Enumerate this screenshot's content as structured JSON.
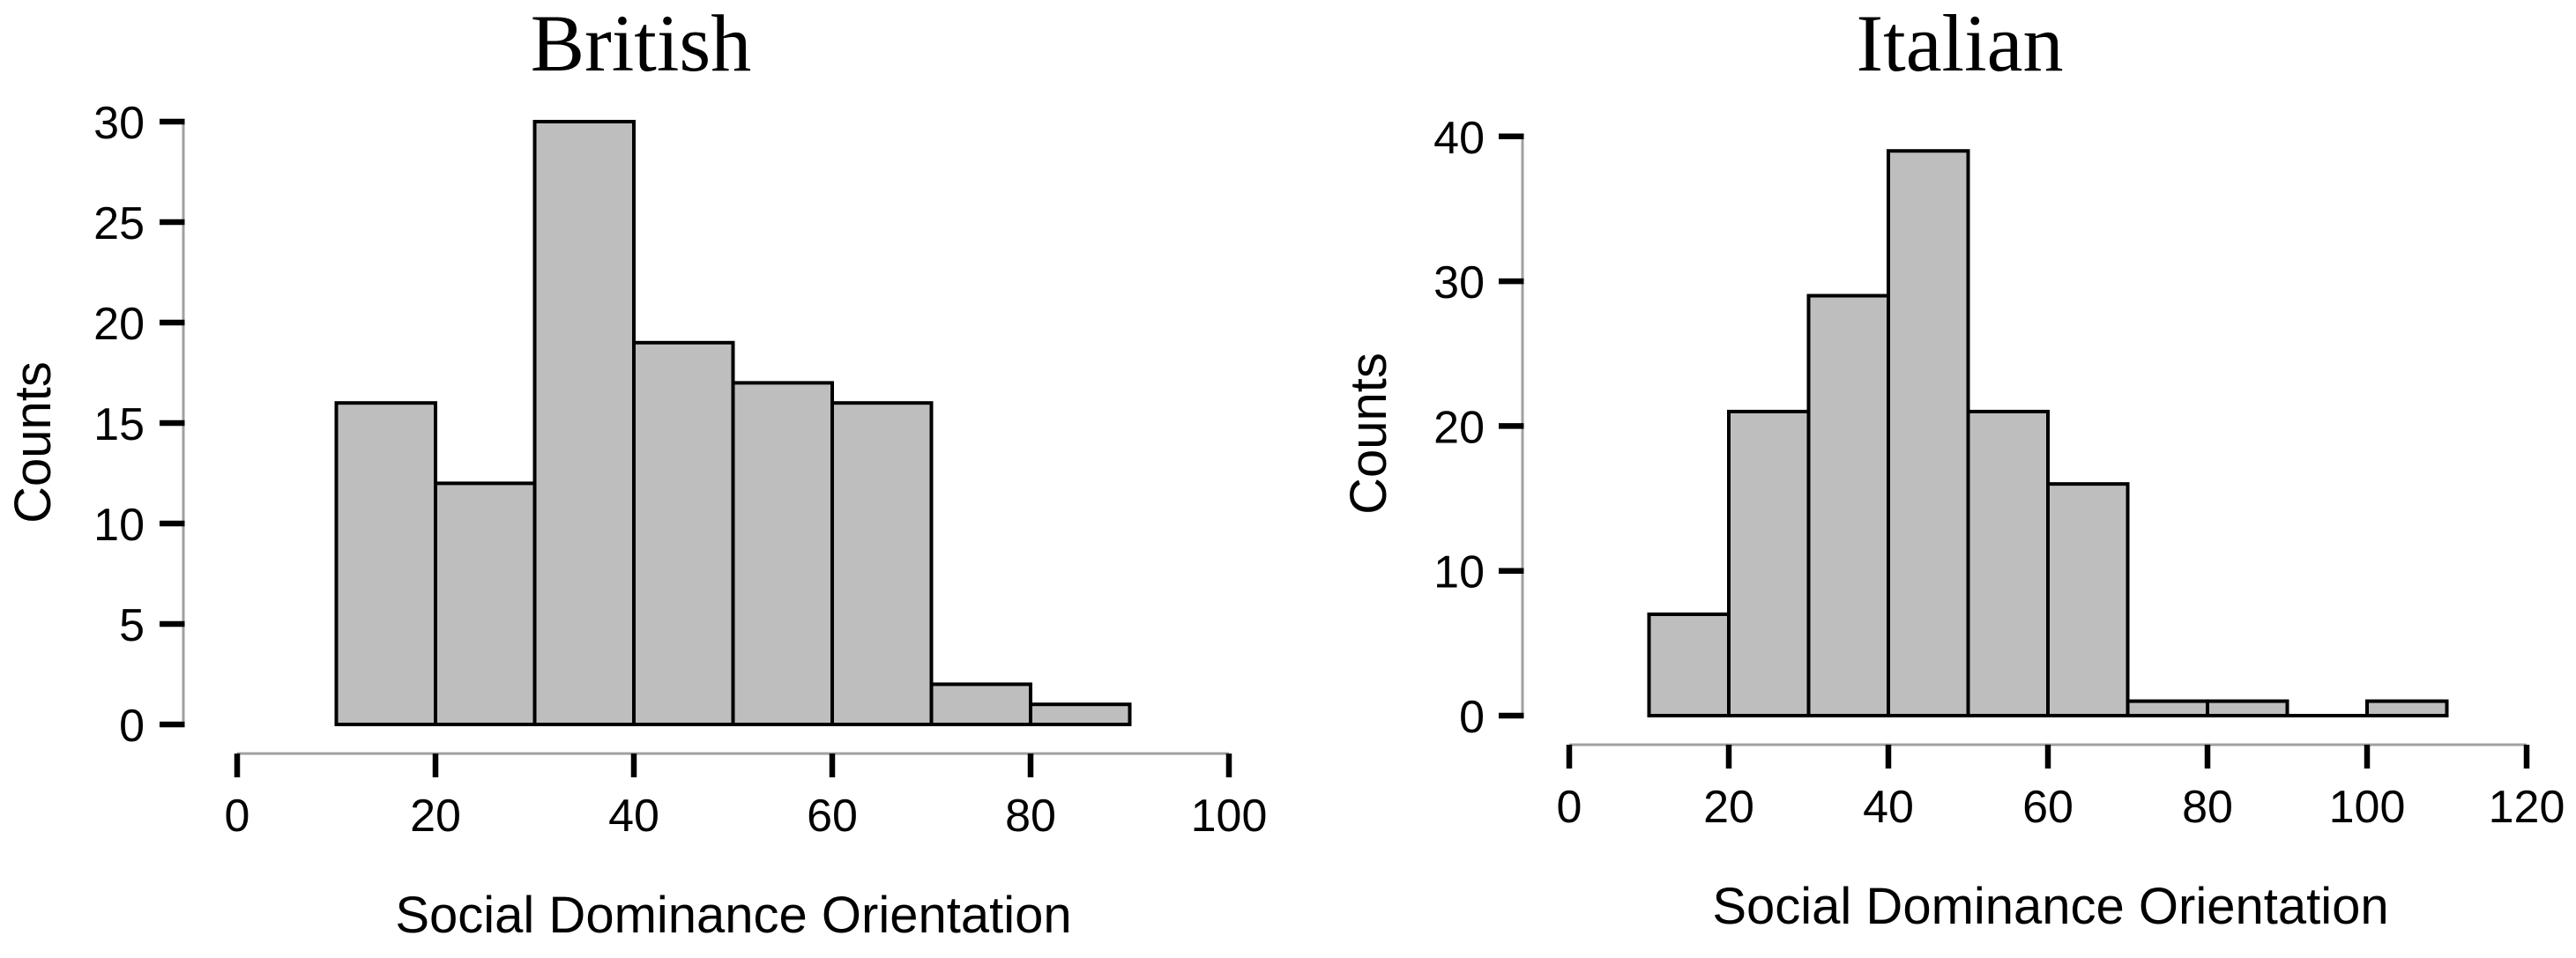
{
  "style": {
    "background": "#ffffff",
    "bar_fill": "#bebebe",
    "bar_stroke": "#000000",
    "axis_line_color": "#a0a0a0",
    "tick_color": "#000000",
    "text_color": "#000000"
  },
  "chart_data": [
    {
      "type": "bar",
      "subtype": "histogram",
      "title": "British",
      "xlabel": "Social Dominance Orientation",
      "ylabel": "Counts",
      "bin_start": 10,
      "bin_width": 10,
      "bin_edges": [
        10,
        20,
        30,
        40,
        50,
        60,
        70,
        80,
        90
      ],
      "counts": [
        16,
        12,
        30,
        19,
        17,
        16,
        2,
        1
      ],
      "x_ticks": [
        0,
        20,
        40,
        60,
        80,
        100
      ],
      "y_ticks": [
        0,
        5,
        10,
        15,
        20,
        25,
        30
      ],
      "xlim": [
        0,
        100
      ],
      "ylim": [
        0,
        30
      ],
      "grid": false,
      "legend_position": "none"
    },
    {
      "type": "bar",
      "subtype": "histogram",
      "title": "Italian",
      "xlabel": "Social Dominance Orientation",
      "ylabel": "Counts",
      "bin_start": 10,
      "bin_width": 10,
      "bin_edges": [
        10,
        20,
        30,
        40,
        50,
        60,
        70,
        80,
        90,
        100,
        110
      ],
      "counts": [
        7,
        21,
        29,
        39,
        21,
        16,
        1,
        1,
        0,
        1
      ],
      "x_ticks": [
        0,
        20,
        40,
        60,
        80,
        100,
        120
      ],
      "y_ticks": [
        0,
        10,
        20,
        30,
        40
      ],
      "xlim": [
        0,
        120
      ],
      "ylim": [
        0,
        40
      ],
      "grid": false,
      "legend_position": "none"
    }
  ]
}
